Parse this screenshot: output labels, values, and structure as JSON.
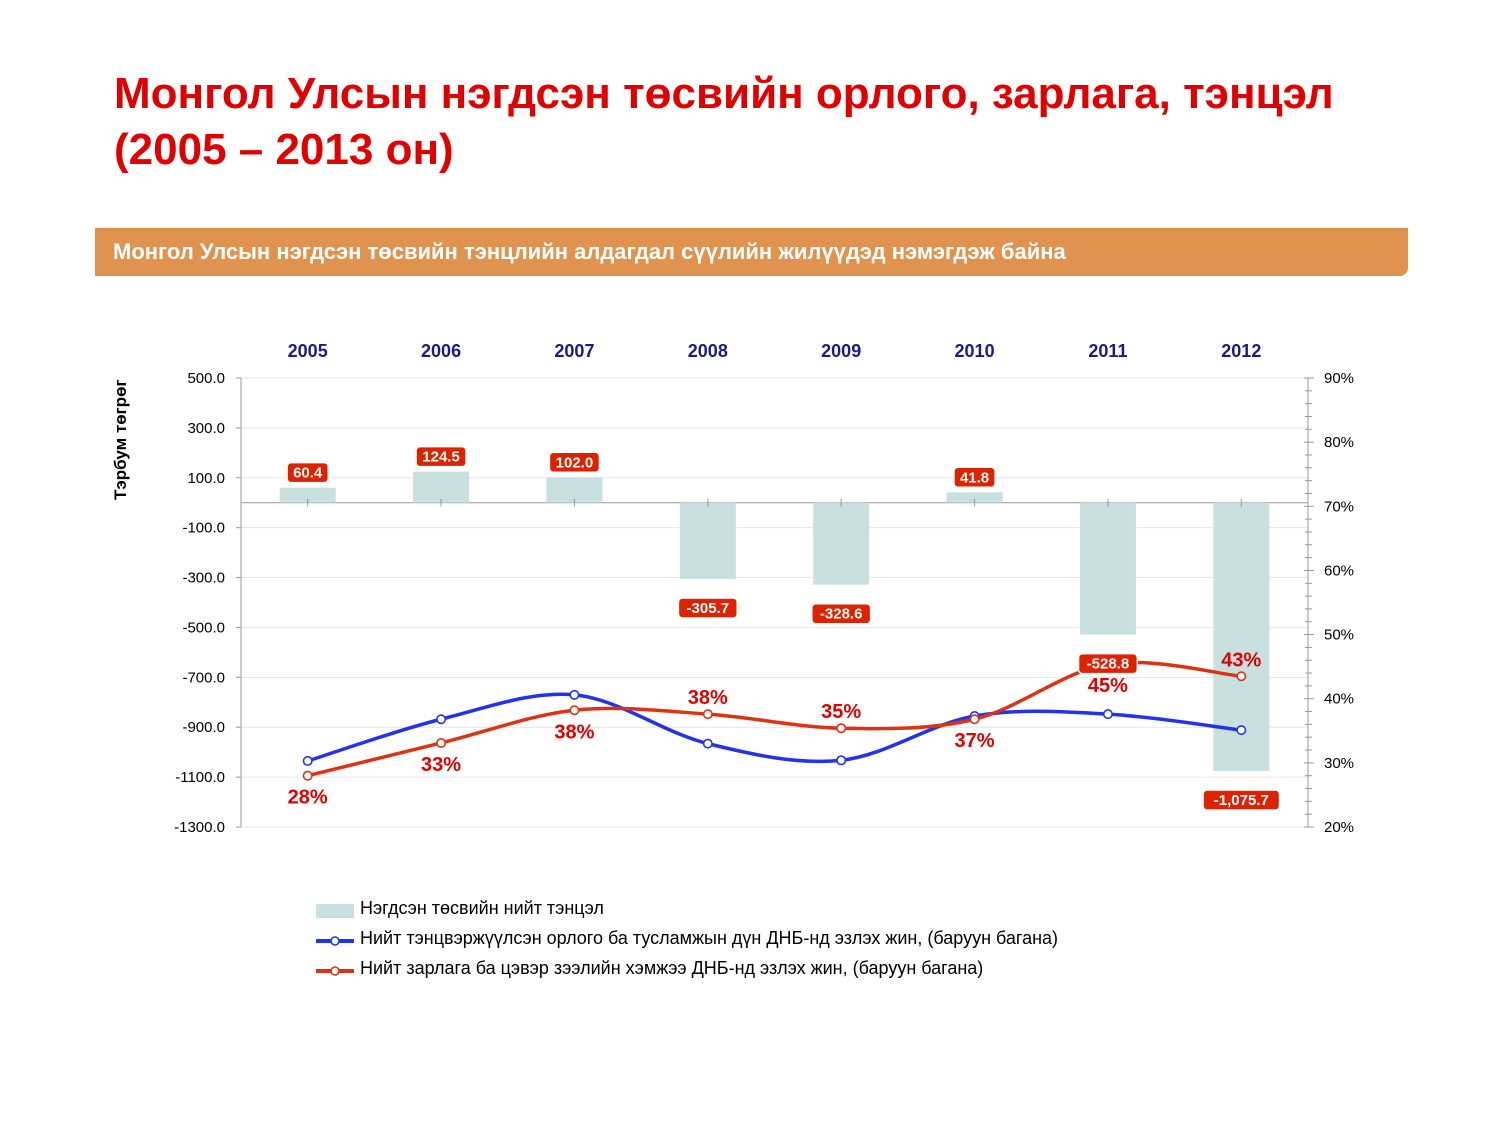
{
  "slide": {
    "title": "Монгол Улсын нэгдсэн төсвийн орлого, зарлага, тэнцэл (2005 – 2013 он)",
    "banner": "Монгол Улсын нэгдсэн төсвийн тэнцлийн алдагдал сүүлийн жилүүдэд нэмэгдэж байна"
  },
  "colors": {
    "bar": "#c8e0e0",
    "income_line": "#2233ee",
    "expense_line": "#dd3311",
    "label_red": "#e00000",
    "year_label": "#1a1a8c"
  },
  "chart_data": {
    "type": "bar",
    "categories": [
      "2005",
      "2006",
      "2007",
      "2008",
      "2009",
      "2010",
      "2011",
      "2012"
    ],
    "ylabel": "Тэрбум төгрөг",
    "ylim": [
      -1300,
      500
    ],
    "y_ticks": [
      "500.0",
      "300.0",
      "100.0",
      "-100.0",
      "-300.0",
      "-500.0",
      "-700.0",
      "-900.0",
      "-1100.0",
      "-1300.0"
    ],
    "y2lim": [
      20,
      90
    ],
    "y2_ticks": [
      "90%",
      "80%",
      "70%",
      "60%",
      "50%",
      "40%",
      "30%",
      "20%"
    ],
    "grid": true,
    "series": [
      {
        "name": "Нэгдсэн төсвийн нийт тэнцэл",
        "type": "bar",
        "axis": "left",
        "values": [
          60.4,
          124.5,
          102.0,
          -305.7,
          -328.6,
          41.8,
          -528.8,
          -1075.7
        ],
        "labels": [
          "60.4",
          "124.5",
          "102.0",
          "-305.7",
          "-328.6",
          "41.8",
          "-528.8",
          "-1,075.7"
        ],
        "show_label": [
          true,
          true,
          true,
          true,
          true,
          true,
          true,
          true
        ]
      },
      {
        "name": "Нийт тэнцвэржүүлсэн орлого ба тусламжын дүн ДНБ-нд эзлэх жин, (баруун багана)",
        "type": "line",
        "axis": "right",
        "values": [
          30.3,
          36.8,
          40.6,
          33.0,
          30.4,
          37.3,
          37.6,
          35.1
        ],
        "labels": [
          "",
          "",
          "",
          "",
          "",
          "",
          "",
          ""
        ]
      },
      {
        "name": "Нийт зарлага ба цэвэр зээлийн хэмжээ ДНБ-нд эзлэх жин, (баруун багана)",
        "type": "line",
        "axis": "right",
        "values": [
          28.0,
          33.1,
          38.2,
          37.6,
          35.4,
          36.8,
          45.4,
          43.5
        ],
        "labels": [
          "28%",
          "33%",
          "38%",
          "38%",
          "35%",
          "37%",
          "45%",
          "43%"
        ],
        "label_pos": [
          "below",
          "below",
          "below",
          "above",
          "above",
          "below",
          "below",
          "above"
        ]
      }
    ]
  }
}
